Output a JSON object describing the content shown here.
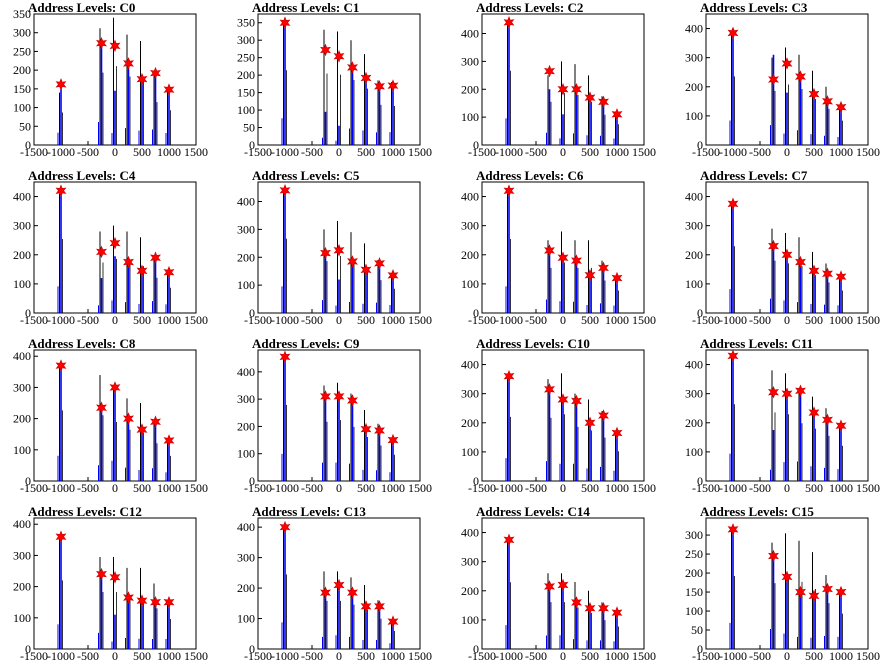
{
  "colors": {
    "black_bars": "#000000",
    "blue_bars": "#0000ff",
    "markers": "#ff0000",
    "marker_edge": "#cc0000"
  },
  "chart_data": [
    {
      "type": "bar",
      "title": "Address Levels: C0",
      "xlim": [
        -1500,
        1500
      ],
      "x_ticks": [
        "-1500",
        "-1000",
        "-500",
        "0",
        "500",
        "1000",
        "1500"
      ],
      "ylim": [
        0,
        350
      ],
      "y_ticks": [
        "0",
        "50",
        "100",
        "150",
        "200",
        "250",
        "300",
        "350"
      ],
      "x_positions": [
        -1000,
        -250,
        0,
        250,
        500,
        750,
        1000
      ],
      "star_values": [
        162,
        272,
        265,
        218,
        176,
        192,
        148
      ],
      "black_peaks": [
        140,
        312,
        340,
        295,
        278,
        185,
        150
      ],
      "blue_peaks": [
        150,
        280,
        145,
        205,
        175,
        188,
        145
      ]
    },
    {
      "type": "bar",
      "title": "Address Levels: C1",
      "xlim": [
        -1500,
        1500
      ],
      "x_ticks": [
        "-1500",
        "-1000",
        "-500",
        "0",
        "500",
        "1000",
        "1500"
      ],
      "ylim": [
        0,
        375
      ],
      "y_ticks": [
        "0",
        "50",
        "100",
        "150",
        "200",
        "250",
        "300",
        "350"
      ],
      "x_positions": [
        -1000,
        -250,
        0,
        250,
        500,
        750,
        1000
      ],
      "star_values": [
        350,
        272,
        254,
        222,
        192,
        168,
        170
      ],
      "black_peaks": [
        345,
        330,
        325,
        300,
        260,
        185,
        180
      ],
      "blue_peaks": [
        348,
        95,
        55,
        215,
        190,
        165,
        168
      ]
    },
    {
      "type": "bar",
      "title": "Address Levels: C2",
      "xlim": [
        -1500,
        1500
      ],
      "x_ticks": [
        "-1500",
        "-1000",
        "-500",
        "0",
        "500",
        "1000",
        "1500"
      ],
      "ylim": [
        0,
        470
      ],
      "y_ticks": [
        "0",
        "100",
        "200",
        "300",
        "400"
      ],
      "x_positions": [
        -1000,
        -250,
        0,
        250,
        500,
        750,
        1000
      ],
      "star_values": [
        440,
        265,
        200,
        200,
        170,
        155,
        110
      ],
      "black_peaks": [
        430,
        250,
        300,
        290,
        250,
        175,
        120
      ],
      "blue_peaks": [
        435,
        200,
        110,
        190,
        160,
        150,
        105
      ]
    },
    {
      "type": "bar",
      "title": "Address Levels: C3",
      "xlim": [
        -1500,
        1500
      ],
      "x_ticks": [
        "-1500",
        "-1000",
        "-500",
        "0",
        "500",
        "1000",
        "1500"
      ],
      "ylim": [
        0,
        450
      ],
      "y_ticks": [
        "0",
        "100",
        "200",
        "300",
        "400"
      ],
      "x_positions": [
        -1000,
        -250,
        0,
        250,
        500,
        750,
        1000
      ],
      "star_values": [
        385,
        225,
        280,
        235,
        175,
        150,
        130
      ],
      "black_peaks": [
        380,
        300,
        335,
        310,
        255,
        200,
        135
      ],
      "blue_peaks": [
        382,
        310,
        180,
        230,
        170,
        145,
        125
      ]
    },
    {
      "type": "bar",
      "title": "Address Levels: C4",
      "xlim": [
        -1500,
        1500
      ],
      "x_ticks": [
        "-1500",
        "-1000",
        "-500",
        "0",
        "500",
        "1000",
        "1500"
      ],
      "ylim": [
        0,
        450
      ],
      "y_ticks": [
        "0",
        "100",
        "200",
        "300",
        "400"
      ],
      "x_positions": [
        -1000,
        -250,
        0,
        250,
        500,
        750,
        1000
      ],
      "star_values": [
        420,
        210,
        240,
        175,
        145,
        190,
        140
      ],
      "black_peaks": [
        410,
        280,
        300,
        280,
        260,
        195,
        140
      ],
      "blue_peaks": [
        415,
        120,
        195,
        170,
        140,
        185,
        135
      ]
    },
    {
      "type": "bar",
      "title": "Address Levels: C5",
      "xlim": [
        -1500,
        1500
      ],
      "x_ticks": [
        "-1500",
        "-1000",
        "-500",
        "0",
        "500",
        "1000",
        "1500"
      ],
      "ylim": [
        0,
        470
      ],
      "y_ticks": [
        "0",
        "100",
        "200",
        "300",
        "400"
      ],
      "x_positions": [
        -1000,
        -250,
        0,
        250,
        500,
        750,
        1000
      ],
      "star_values": [
        440,
        215,
        225,
        185,
        155,
        178,
        135
      ],
      "black_peaks": [
        430,
        300,
        330,
        290,
        250,
        190,
        140
      ],
      "blue_peaks": [
        435,
        210,
        120,
        180,
        150,
        170,
        130
      ]
    },
    {
      "type": "bar",
      "title": "Address Levels: C6",
      "xlim": [
        -1500,
        1500
      ],
      "x_ticks": [
        "-1500",
        "-1000",
        "-500",
        "0",
        "500",
        "1000",
        "1500"
      ],
      "ylim": [
        0,
        450
      ],
      "y_ticks": [
        "0",
        "100",
        "200",
        "300",
        "400"
      ],
      "x_positions": [
        -1000,
        -250,
        0,
        250,
        500,
        750,
        1000
      ],
      "star_values": [
        420,
        215,
        190,
        180,
        130,
        155,
        120
      ],
      "black_peaks": [
        410,
        250,
        280,
        250,
        250,
        180,
        125
      ],
      "blue_peaks": [
        415,
        210,
        185,
        175,
        125,
        150,
        115
      ]
    },
    {
      "type": "bar",
      "title": "Address Levels: C7",
      "xlim": [
        -1500,
        1500
      ],
      "x_ticks": [
        "-1500",
        "-1000",
        "-500",
        "0",
        "500",
        "1000",
        "1500"
      ],
      "ylim": [
        0,
        450
      ],
      "y_ticks": [
        "0",
        "100",
        "200",
        "300",
        "400"
      ],
      "x_positions": [
        -1000,
        -250,
        0,
        250,
        500,
        750,
        1000
      ],
      "star_values": [
        375,
        230,
        200,
        175,
        145,
        135,
        125
      ],
      "black_peaks": [
        370,
        290,
        275,
        260,
        210,
        170,
        125
      ],
      "blue_peaks": [
        372,
        225,
        195,
        170,
        140,
        130,
        120
      ]
    },
    {
      "type": "bar",
      "title": "Address Levels: C8",
      "xlim": [
        -1500,
        1500
      ],
      "x_ticks": [
        "-1500",
        "-1000",
        "-500",
        "0",
        "500",
        "1000",
        "1500"
      ],
      "ylim": [
        0,
        420
      ],
      "y_ticks": [
        "0",
        "100",
        "200",
        "300",
        "400"
      ],
      "x_positions": [
        -1000,
        -250,
        0,
        250,
        500,
        750,
        1000
      ],
      "star_values": [
        370,
        235,
        300,
        200,
        165,
        190,
        130
      ],
      "black_peaks": [
        365,
        340,
        305,
        265,
        250,
        195,
        130
      ],
      "blue_peaks": [
        368,
        230,
        295,
        195,
        160,
        185,
        125
      ]
    },
    {
      "type": "bar",
      "title": "Address Levels: C9",
      "xlim": [
        -1500,
        1500
      ],
      "x_ticks": [
        "-1500",
        "-1000",
        "-500",
        "0",
        "500",
        "1000",
        "1500"
      ],
      "ylim": [
        0,
        480
      ],
      "y_ticks": [
        "0",
        "100",
        "200",
        "300",
        "400"
      ],
      "x_positions": [
        -1000,
        -250,
        0,
        250,
        500,
        750,
        1000
      ],
      "star_values": [
        455,
        310,
        310,
        295,
        190,
        185,
        150
      ],
      "black_peaks": [
        450,
        350,
        360,
        320,
        260,
        210,
        155
      ],
      "blue_peaks": [
        452,
        305,
        305,
        290,
        185,
        180,
        145
      ]
    },
    {
      "type": "bar",
      "title": "Address Levels: C10",
      "xlim": [
        -1500,
        1500
      ],
      "x_ticks": [
        "-1500",
        "-1000",
        "-500",
        "0",
        "500",
        "1000",
        "1500"
      ],
      "ylim": [
        0,
        450
      ],
      "y_ticks": [
        "0",
        "100",
        "200",
        "300",
        "400"
      ],
      "x_positions": [
        -1000,
        -250,
        0,
        250,
        500,
        750,
        1000
      ],
      "star_values": [
        360,
        315,
        280,
        275,
        200,
        225,
        165
      ],
      "black_peaks": [
        355,
        350,
        370,
        300,
        280,
        240,
        165
      ],
      "blue_peaks": [
        358,
        310,
        270,
        270,
        195,
        220,
        160
      ]
    },
    {
      "type": "bar",
      "title": "Address Levels: C11",
      "xlim": [
        -1500,
        1500
      ],
      "x_ticks": [
        "-1500",
        "-1000",
        "-500",
        "0",
        "500",
        "1000",
        "1500"
      ],
      "ylim": [
        0,
        450
      ],
      "y_ticks": [
        "0",
        "100",
        "200",
        "300",
        "400"
      ],
      "x_positions": [
        -1000,
        -250,
        0,
        250,
        500,
        750,
        1000
      ],
      "star_values": [
        430,
        305,
        300,
        310,
        235,
        210,
        190
      ],
      "black_peaks": [
        425,
        380,
        370,
        320,
        290,
        250,
        195
      ],
      "blue_peaks": [
        428,
        175,
        295,
        305,
        230,
        205,
        185
      ]
    },
    {
      "type": "bar",
      "title": "Address Levels: C12",
      "xlim": [
        -1500,
        1500
      ],
      "x_ticks": [
        "-1500",
        "-1000",
        "-500",
        "0",
        "500",
        "1000",
        "1500"
      ],
      "ylim": [
        0,
        420
      ],
      "y_ticks": [
        "0",
        "100",
        "200",
        "300",
        "400"
      ],
      "x_positions": [
        -1000,
        -250,
        0,
        250,
        500,
        750,
        1000
      ],
      "star_values": [
        360,
        240,
        230,
        165,
        155,
        150,
        150
      ],
      "black_peaks": [
        355,
        295,
        295,
        260,
        260,
        210,
        155
      ],
      "blue_peaks": [
        358,
        235,
        110,
        160,
        150,
        145,
        145
      ]
    },
    {
      "type": "bar",
      "title": "Address Levels: C13",
      "xlim": [
        -1500,
        1500
      ],
      "x_ticks": [
        "-1500",
        "-1000",
        "-500",
        "0",
        "500",
        "1000",
        "1500"
      ],
      "ylim": [
        0,
        430
      ],
      "y_ticks": [
        "0",
        "100",
        "200",
        "300",
        "400"
      ],
      "x_positions": [
        -1000,
        -250,
        0,
        250,
        500,
        750,
        1000
      ],
      "star_values": [
        400,
        185,
        210,
        185,
        140,
        140,
        90
      ],
      "black_peaks": [
        395,
        255,
        255,
        235,
        210,
        160,
        95
      ],
      "blue_peaks": [
        398,
        180,
        205,
        180,
        135,
        135,
        85
      ]
    },
    {
      "type": "bar",
      "title": "Address Levels: C14",
      "xlim": [
        -1500,
        1500
      ],
      "x_ticks": [
        "-1500",
        "-1000",
        "-500",
        "0",
        "500",
        "1000",
        "1500"
      ],
      "ylim": [
        0,
        450
      ],
      "y_ticks": [
        "0",
        "100",
        "200",
        "300",
        "400"
      ],
      "x_positions": [
        -1000,
        -250,
        0,
        250,
        500,
        750,
        1000
      ],
      "star_values": [
        375,
        215,
        220,
        160,
        140,
        140,
        125
      ],
      "black_peaks": [
        370,
        260,
        260,
        230,
        200,
        160,
        125
      ],
      "blue_peaks": [
        372,
        210,
        215,
        155,
        135,
        135,
        120
      ]
    },
    {
      "type": "bar",
      "title": "Address Levels: C15",
      "xlim": [
        -1500,
        1500
      ],
      "x_ticks": [
        "-1500",
        "-1000",
        "-500",
        "0",
        "500",
        "1000",
        "1500"
      ],
      "ylim": [
        0,
        345
      ],
      "y_ticks": [
        "0",
        "50",
        "100",
        "150",
        "200",
        "250",
        "300"
      ],
      "x_positions": [
        -1000,
        -250,
        0,
        250,
        500,
        750,
        1000
      ],
      "star_values": [
        315,
        245,
        190,
        150,
        140,
        158,
        150
      ],
      "black_peaks": [
        310,
        280,
        305,
        285,
        255,
        195,
        150
      ],
      "blue_peaks": [
        312,
        240,
        185,
        145,
        135,
        155,
        145
      ]
    }
  ]
}
